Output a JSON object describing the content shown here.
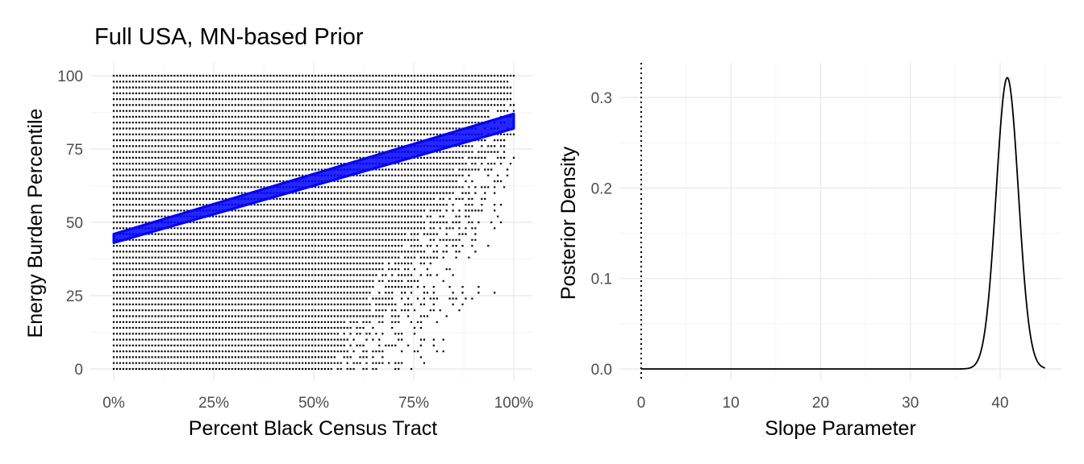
{
  "chart_data": [
    {
      "type": "scatter",
      "title": "Full USA, MN-based Prior",
      "xlabel": "Percent Black Census Tract",
      "ylabel": "Energy Burden Percentile",
      "xlim": [
        0,
        1
      ],
      "ylim": [
        0,
        100
      ],
      "x_ticks": [
        {
          "value": 0,
          "label": "0%"
        },
        {
          "value": 0.25,
          "label": "25%"
        },
        {
          "value": 0.5,
          "label": "50%"
        },
        {
          "value": 0.75,
          "label": "75%"
        },
        {
          "value": 1,
          "label": "100%"
        }
      ],
      "y_ticks": [
        {
          "value": 0,
          "label": "0"
        },
        {
          "value": 25,
          "label": "25"
        },
        {
          "value": 50,
          "label": "50"
        },
        {
          "value": 75,
          "label": "75"
        },
        {
          "value": 100,
          "label": "100"
        }
      ],
      "grid": true,
      "point_color": "#000000",
      "regression_band": {
        "color": "#0000ff",
        "x": [
          0,
          1
        ],
        "y_center": [
          44.5,
          84.5
        ],
        "half_width_start": 1.5,
        "half_width_end": 2.5
      }
    },
    {
      "type": "line",
      "title": "",
      "xlabel": "Slope Parameter",
      "ylabel": "Posterior Density",
      "xlim": [
        0,
        46.2
      ],
      "ylim": [
        0,
        0.33
      ],
      "x_ticks": [
        {
          "value": 0,
          "label": "0"
        },
        {
          "value": 10,
          "label": "10"
        },
        {
          "value": 20,
          "label": "20"
        },
        {
          "value": 30,
          "label": "30"
        },
        {
          "value": 40,
          "label": "40"
        }
      ],
      "y_ticks": [
        {
          "value": 0,
          "label": "0.0"
        },
        {
          "value": 0.1,
          "label": "0.1"
        },
        {
          "value": 0.2,
          "label": "0.2"
        },
        {
          "value": 0.3,
          "label": "0.3"
        }
      ],
      "grid": true,
      "reference_line": {
        "x": 0,
        "style": "dotted",
        "color": "#000000"
      },
      "density_curve": {
        "x_range": [
          0,
          45
        ],
        "peak_x": 40.8,
        "peak_y": 0.322,
        "color": "#000000"
      }
    }
  ]
}
